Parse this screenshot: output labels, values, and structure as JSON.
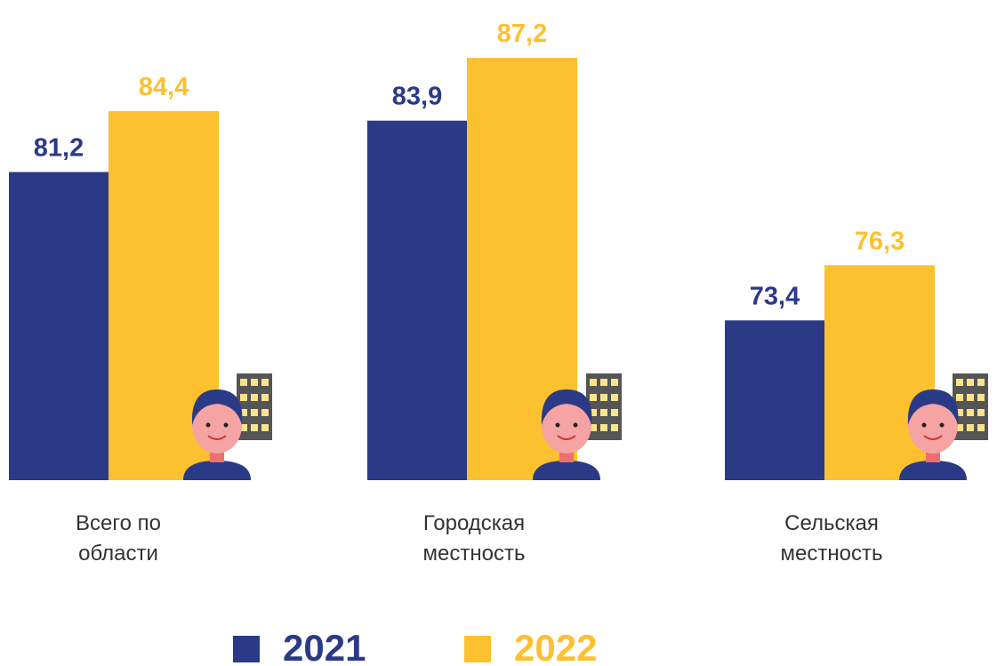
{
  "chart_data": {
    "type": "bar",
    "categories": [
      "Всего по области",
      "Городская местность",
      "Сельская местность"
    ],
    "series": [
      {
        "name": "2021",
        "color": "#2b3a87",
        "values": [
          81.2,
          83.9,
          73.4
        ],
        "value_labels": [
          "81,2",
          "83,9",
          "73,4"
        ]
      },
      {
        "name": "2022",
        "color": "#fdc02f",
        "values": [
          84.4,
          87.2,
          76.3
        ],
        "value_labels": [
          "84,4",
          "87,2",
          "76,3"
        ]
      }
    ],
    "ylim": [
      65,
      88
    ]
  }
}
